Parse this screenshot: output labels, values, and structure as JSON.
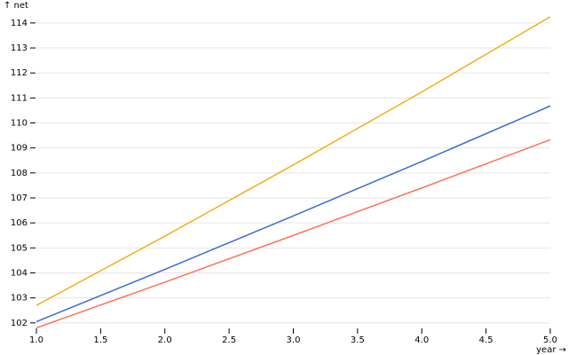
{
  "chart_data": {
    "type": "line",
    "y_label": "↑ net",
    "x_label": "year →",
    "x": [
      1,
      2,
      3,
      4,
      5
    ],
    "series": [
      {
        "color": "#efb118",
        "values": [
          102.7,
          105.47,
          108.32,
          111.24,
          114.25
        ]
      },
      {
        "color": "#4269d0",
        "values": [
          102.05,
          104.14,
          106.28,
          108.46,
          110.68
        ]
      },
      {
        "color": "#ff725c",
        "values": [
          101.8,
          103.63,
          105.5,
          107.4,
          109.33
        ]
      }
    ],
    "xlim": [
      1,
      5
    ],
    "xticks": [
      {
        "value": 1,
        "label": "1.0"
      },
      1.5,
      {
        "value": 2,
        "label": "2.0"
      },
      2.5,
      {
        "value": 3,
        "label": "3.0"
      },
      3.5,
      {
        "value": 4,
        "label": "4.0"
      },
      4.5,
      {
        "value": 5,
        "label": "5.0"
      }
    ],
    "ylim": [
      101.78,
      114.28
    ],
    "yticks": [
      102,
      103,
      104,
      105,
      106,
      107,
      108,
      109,
      110,
      111,
      112,
      113,
      114
    ],
    "grid": true
  }
}
